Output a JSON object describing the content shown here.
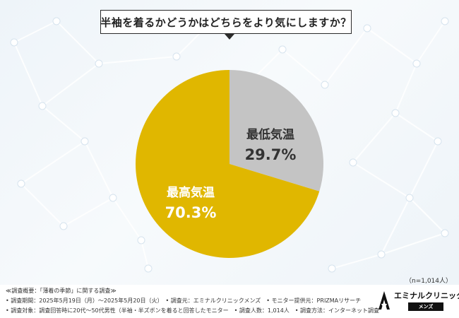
{
  "question": "半袖を着るかどうかはどちらをより気にしますか？",
  "sample_note": "（n=1,014人）",
  "footer": {
    "line1": "≪調査概要：「薄着の季節」に関する調査≫",
    "line2": "• 調査期間：2025年5月19日（月）～2025年5月20日（火）　• 調査元：エミナルクリニックメンズ　• モニター提供元：PRIZMAリサーチ",
    "line3": "• 調査対象：調査回答時に20代～50代男性（半袖・半ズボンを着ると回答したモニター　• 調査人数：1,014人　• 調査方法：インターネット調査"
  },
  "logo": {
    "name": "エミナルクリニック",
    "sub": "メンズ"
  },
  "colors": {
    "high": "#e0b700",
    "low": "#c4c4c4",
    "accent": "#2b2b2b"
  },
  "chart_data": {
    "type": "pie",
    "slices": [
      {
        "label": "最低気温",
        "value": 29.7,
        "display": "29.7%",
        "color": "#c4c4c4",
        "label_color": "#333333"
      },
      {
        "label": "最高気温",
        "value": 70.3,
        "display": "70.3%",
        "color": "#e0b700",
        "label_color": "#ffffff"
      }
    ],
    "n": 1014
  }
}
